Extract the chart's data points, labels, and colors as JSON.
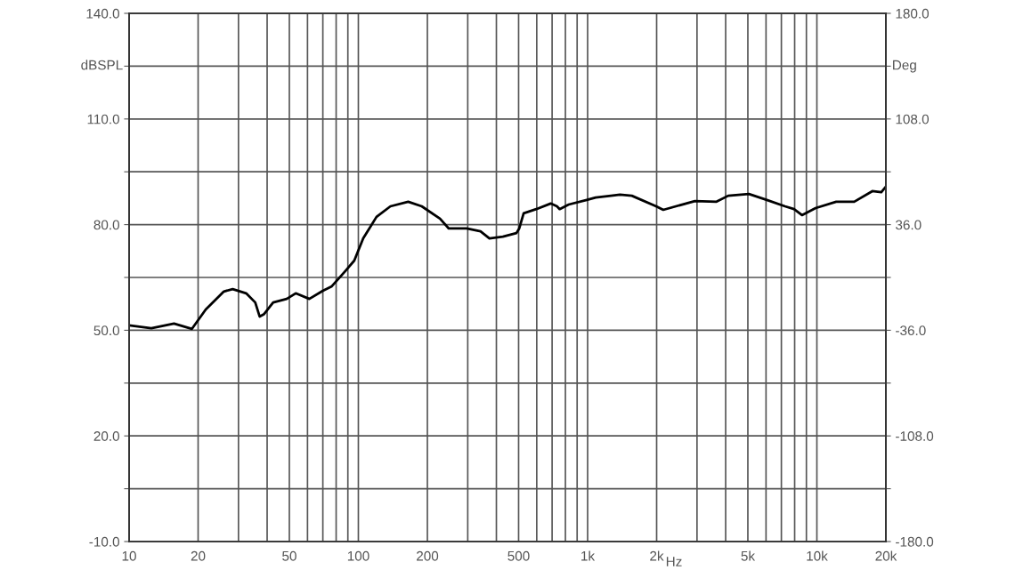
{
  "chart_data": {
    "type": "line",
    "xlabel": "Hz",
    "ylabel": "dBSPL",
    "y2label": "Deg",
    "log": "x",
    "grid": true,
    "marker": "none",
    "line_style": "solid",
    "xlim": [
      10,
      20000
    ],
    "ylim": [
      -10,
      140
    ],
    "y2lim": [
      -180,
      180
    ],
    "xticks": [
      {
        "value": 10,
        "label": "10"
      },
      {
        "value": 20,
        "label": "20"
      },
      {
        "value": 30,
        "label": null
      },
      {
        "value": 40,
        "label": null
      },
      {
        "value": 50,
        "label": "50"
      },
      {
        "value": 60,
        "label": null
      },
      {
        "value": 70,
        "label": null
      },
      {
        "value": 80,
        "label": null
      },
      {
        "value": 90,
        "label": null
      },
      {
        "value": 100,
        "label": "100"
      },
      {
        "value": 200,
        "label": "200"
      },
      {
        "value": 300,
        "label": null
      },
      {
        "value": 400,
        "label": null
      },
      {
        "value": 500,
        "label": "500"
      },
      {
        "value": 600,
        "label": null
      },
      {
        "value": 700,
        "label": null
      },
      {
        "value": 800,
        "label": null
      },
      {
        "value": 900,
        "label": null
      },
      {
        "value": 1000,
        "label": "1k"
      },
      {
        "value": 2000,
        "label": "2k"
      },
      {
        "value": 3000,
        "label": null
      },
      {
        "value": 4000,
        "label": null
      },
      {
        "value": 5000,
        "label": "5k"
      },
      {
        "value": 6000,
        "label": null
      },
      {
        "value": 7000,
        "label": null
      },
      {
        "value": 8000,
        "label": null
      },
      {
        "value": 9000,
        "label": null
      },
      {
        "value": 10000,
        "label": "10k"
      },
      {
        "value": 20000,
        "label": "20k"
      }
    ],
    "yticks": [
      {
        "value": -10,
        "label": "-10.0"
      },
      {
        "value": 5,
        "label": null
      },
      {
        "value": 20,
        "label": "20.0"
      },
      {
        "value": 35,
        "label": null
      },
      {
        "value": 50,
        "label": "50.0"
      },
      {
        "value": 65,
        "label": null
      },
      {
        "value": 80,
        "label": "80.0"
      },
      {
        "value": 95,
        "label": null
      },
      {
        "value": 110,
        "label": "110.0"
      },
      {
        "value": 125,
        "label": null
      },
      {
        "value": 140,
        "label": "140.0"
      }
    ],
    "y2ticks": [
      {
        "value": -180,
        "label": "-180.0"
      },
      {
        "value": -144,
        "label": null
      },
      {
        "value": -108,
        "label": "-108.0"
      },
      {
        "value": -72,
        "label": null
      },
      {
        "value": -36,
        "label": "-36.0"
      },
      {
        "value": 0,
        "label": null
      },
      {
        "value": 36,
        "label": "36.0"
      },
      {
        "value": 72,
        "label": null
      },
      {
        "value": 108,
        "label": "108.0"
      },
      {
        "value": 144,
        "label": null
      },
      {
        "value": 180,
        "label": "180.0"
      }
    ],
    "series": [
      {
        "color": "#000000",
        "x": [
          10,
          12.5,
          15.7,
          18.8,
          21.6,
          25.9,
          28.3,
          32.4,
          35.5,
          37.1,
          38.8,
          42.5,
          48.7,
          53.3,
          61.1,
          70,
          76.6,
          87.7,
          96,
          105,
          120,
          138,
          165,
          189,
          227,
          248,
          297,
          341,
          373,
          427,
          489,
          503,
          526,
          597,
          690,
          735,
          755,
          827,
          991,
          1084,
          1264,
          1384,
          1559,
          1990,
          2138,
          2938,
          3650,
          4104,
          5050,
          6050,
          7260,
          7950,
          8610,
          9870,
          12140,
          14550,
          17450,
          19100,
          20000
        ],
        "values": [
          51.4,
          50.6,
          51.9,
          50.4,
          55.9,
          61.0,
          61.7,
          60.5,
          57.9,
          53.9,
          54.6,
          57.9,
          58.9,
          60.5,
          58.9,
          61.2,
          62.5,
          66.8,
          69.8,
          76.1,
          82.2,
          85.2,
          86.5,
          85.2,
          81.7,
          78.9,
          78.9,
          78.1,
          76.1,
          76.6,
          77.6,
          78.9,
          83.2,
          84.4,
          86.0,
          85.2,
          84.4,
          85.7,
          87.0,
          87.7,
          88.2,
          88.5,
          88.2,
          85.2,
          84.2,
          86.7,
          86.5,
          88.2,
          88.7,
          87.0,
          85.2,
          84.4,
          82.7,
          84.7,
          86.5,
          86.5,
          89.5,
          89.2,
          90.8
        ]
      }
    ]
  }
}
